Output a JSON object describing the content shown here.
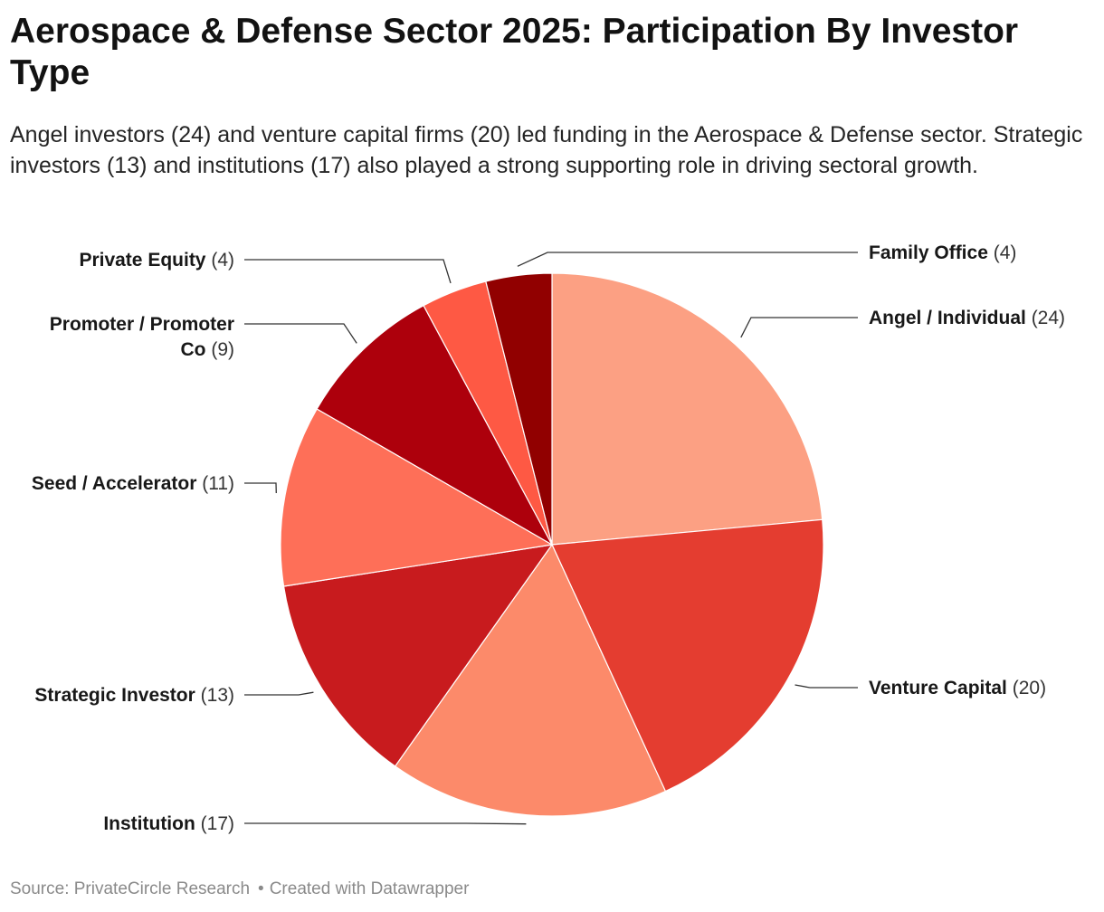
{
  "chart_data": {
    "type": "pie",
    "title": "Aerospace & Defense Sector 2025: Participation By Investor Type",
    "subtitle": "Angel investors (24) and venture capital firms (20) led funding in the Aerospace & Defense sector. Strategic investors (13) and institutions (17) also played a strong supporting role in driving sectoral growth.",
    "slices": [
      {
        "label": "Angel / Individual",
        "value": 24,
        "color": "#fca083"
      },
      {
        "label": "Venture Capital",
        "value": 20,
        "color": "#e43d30"
      },
      {
        "label": "Institution",
        "value": 17,
        "color": "#fc8a6a"
      },
      {
        "label": "Strategic Investor",
        "value": 13,
        "color": "#c81b1e"
      },
      {
        "label": "Seed / Accelerator",
        "value": 11,
        "color": "#fe6f58"
      },
      {
        "label": "Promoter / Promoter Co",
        "value": 9,
        "color": "#ad000c"
      },
      {
        "label": "Private Equity",
        "value": 4,
        "color": "#fe5944"
      },
      {
        "label": "Family Office",
        "value": 4,
        "color": "#910000"
      }
    ]
  },
  "footer": {
    "source": "Source: PrivateCircle Research",
    "credit": "Created with Datawrapper"
  }
}
